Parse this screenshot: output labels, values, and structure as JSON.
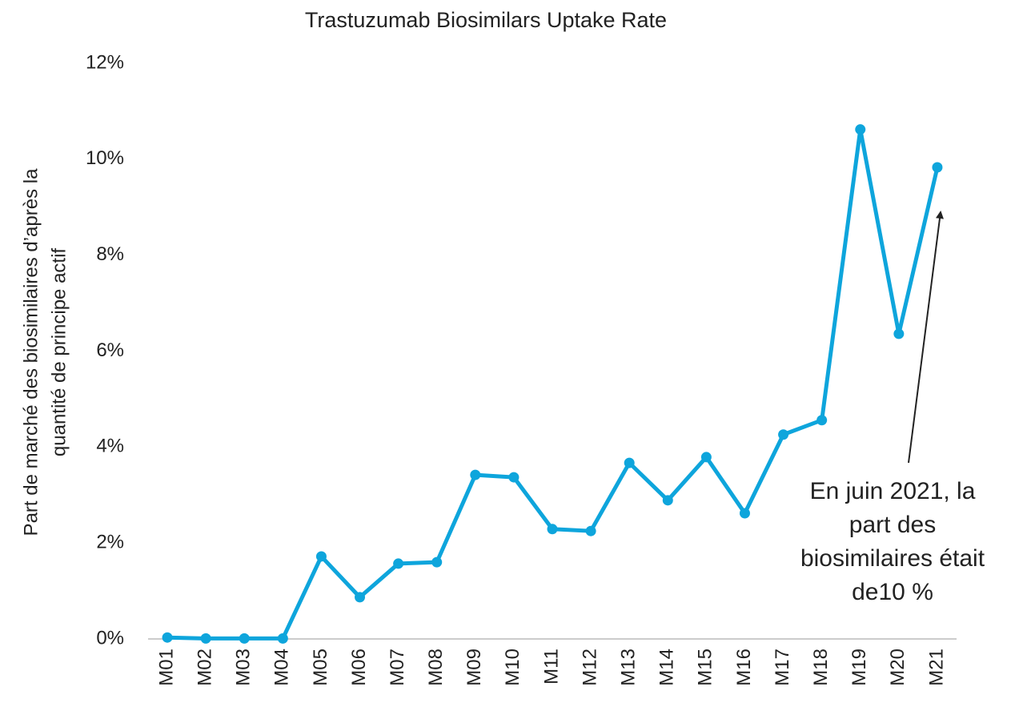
{
  "chart_data": {
    "type": "line",
    "title": "Trastuzumab Biosimilars Uptake Rate",
    "y_label": [
      "Part de marché des biosimilaires d’après la",
      "quantité de principe actif"
    ],
    "categories": [
      "M01",
      "M02",
      "M03",
      "M04",
      "M05",
      "M06",
      "M07",
      "M08",
      "M09",
      "M10",
      "M11",
      "M12",
      "M13",
      "M14",
      "M15",
      "M16",
      "M17",
      "M18",
      "M19",
      "M20",
      "M21"
    ],
    "series": [
      {
        "color": "#0ea5dc",
        "values": [
          0.03,
          0.01,
          0.01,
          0.01,
          1.72,
          0.87,
          1.57,
          1.6,
          3.42,
          3.37,
          2.29,
          2.25,
          3.67,
          2.89,
          3.79,
          2.62,
          4.26,
          4.56,
          10.62,
          6.36,
          9.83
        ]
      }
    ],
    "ylim": [
      0,
      12
    ],
    "yticks": [
      {
        "value": 0,
        "label": "0%"
      },
      {
        "value": 2,
        "label": "2%"
      },
      {
        "value": 4,
        "label": "4%"
      },
      {
        "value": 6,
        "label": "6%"
      },
      {
        "value": 8,
        "label": "8%"
      },
      {
        "value": 10,
        "label": "10%"
      },
      {
        "value": 12,
        "label": "12%"
      }
    ],
    "grid": false,
    "annotation": [
      "En juin 2021, la",
      "part des",
      "biosimilaires était",
      "de10 %"
    ]
  }
}
